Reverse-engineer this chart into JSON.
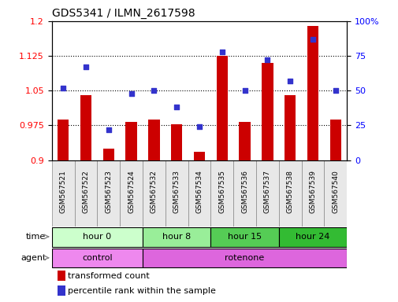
{
  "title": "GDS5341 / ILMN_2617598",
  "samples": [
    "GSM567521",
    "GSM567522",
    "GSM567523",
    "GSM567524",
    "GSM567532",
    "GSM567533",
    "GSM567534",
    "GSM567535",
    "GSM567536",
    "GSM567537",
    "GSM567538",
    "GSM567539",
    "GSM567540"
  ],
  "bar_values": [
    0.988,
    1.04,
    0.925,
    0.982,
    0.988,
    0.978,
    0.918,
    1.125,
    0.982,
    1.11,
    1.04,
    1.19,
    0.988
  ],
  "dot_values": [
    52,
    67,
    22,
    48,
    50,
    38,
    24,
    78,
    50,
    72,
    57,
    87,
    50
  ],
  "ylim_left": [
    0.9,
    1.2
  ],
  "ylim_right": [
    0,
    100
  ],
  "yticks_left": [
    0.9,
    0.975,
    1.05,
    1.125,
    1.2
  ],
  "yticks_right": [
    0,
    25,
    50,
    75,
    100
  ],
  "ytick_labels_right": [
    "0",
    "25",
    "50",
    "75",
    "100%"
  ],
  "bar_color": "#cc0000",
  "dot_color": "#3333cc",
  "bar_bottom": 0.9,
  "time_groups": [
    {
      "label": "hour 0",
      "start": 0,
      "end": 4,
      "color": "#ccffcc"
    },
    {
      "label": "hour 8",
      "start": 4,
      "end": 7,
      "color": "#99ee99"
    },
    {
      "label": "hour 15",
      "start": 7,
      "end": 10,
      "color": "#55cc55"
    },
    {
      "label": "hour 24",
      "start": 10,
      "end": 13,
      "color": "#33bb33"
    }
  ],
  "agent_groups": [
    {
      "label": "control",
      "start": 0,
      "end": 4,
      "color": "#ee88ee"
    },
    {
      "label": "rotenone",
      "start": 4,
      "end": 13,
      "color": "#dd66dd"
    }
  ],
  "legend_bar_label": "transformed count",
  "legend_dot_label": "percentile rank within the sample",
  "time_label": "time",
  "agent_label": "agent"
}
